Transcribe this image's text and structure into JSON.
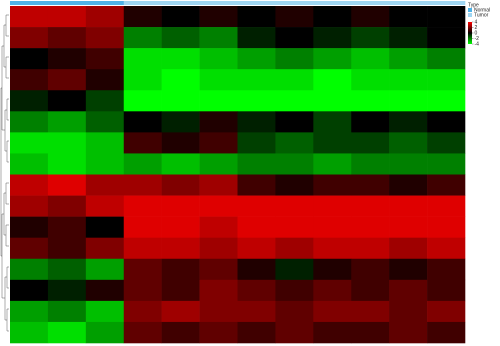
{
  "chart_data": {
    "type": "heatmap",
    "zlim": [
      -4,
      4
    ],
    "colorscale": {
      "low": "#00ff00",
      "mid": "#000000",
      "high": "#ff0000"
    },
    "colorbar_ticks": [
      4,
      2,
      0,
      -2,
      -4
    ],
    "type_legend": {
      "title": "Type",
      "items": [
        {
          "name": "Normal",
          "color": "#4fb3e8"
        },
        {
          "name": "Tumor",
          "color": "#9fd6f2"
        }
      ]
    },
    "column_type": [
      0,
      0,
      0,
      1,
      1,
      1,
      1,
      1,
      1,
      1,
      1,
      1
    ],
    "values": [
      [
        3,
        3,
        2.5,
        0.5,
        0,
        0.5,
        0,
        0.5,
        0,
        0.5,
        0,
        0
      ],
      [
        2,
        1.5,
        2,
        -2,
        -1.5,
        -2,
        -0.5,
        0,
        -0.5,
        -1,
        -0.5,
        0
      ],
      [
        0,
        0.5,
        1,
        -3.5,
        -3.5,
        -3,
        -2.5,
        -2,
        -2.5,
        -3,
        -2.5,
        -2
      ],
      [
        1,
        1.5,
        0.5,
        -3.5,
        -4,
        -3.5,
        -3.5,
        -3.5,
        -4,
        -3.5,
        -3.5,
        -3.5
      ],
      [
        -0.5,
        0,
        -1,
        -4,
        -4,
        -4,
        -4,
        -4,
        -4,
        -4,
        -4,
        -4
      ],
      [
        -2,
        -2.5,
        -1.5,
        0,
        -0.5,
        0.5,
        -0.5,
        0,
        -1,
        0,
        -0.5,
        0
      ],
      [
        -3.5,
        -3.5,
        -3,
        1,
        0.5,
        1,
        -1,
        -1.5,
        -1,
        -1,
        -1.5,
        -1
      ],
      [
        -3,
        -3.5,
        -3,
        -2.5,
        -3,
        -2.5,
        -2,
        -2,
        -2.5,
        -2,
        -2,
        -2
      ],
      [
        3,
        3.5,
        2.5,
        2.5,
        2,
        2.5,
        1,
        0.5,
        1,
        1,
        0.5,
        1
      ],
      [
        2.5,
        2,
        3,
        3.5,
        3.5,
        3.5,
        3.5,
        3.5,
        3.5,
        3.5,
        3.5,
        3.5
      ],
      [
        0.5,
        1,
        0,
        3.5,
        3.5,
        3,
        3.5,
        3.5,
        3.5,
        3.5,
        3.5,
        3.5
      ],
      [
        1.5,
        1,
        2,
        3,
        3,
        2.5,
        3,
        2.5,
        3,
        3,
        2.5,
        3
      ],
      [
        -2,
        -1.5,
        -2.5,
        1.5,
        1,
        1.5,
        0.5,
        -0.5,
        0.5,
        1,
        0.5,
        1
      ],
      [
        0,
        -0.5,
        0.5,
        1.5,
        1,
        2,
        1.5,
        1,
        1.5,
        1,
        1.5,
        1
      ],
      [
        -2.5,
        -2,
        -3,
        2,
        2.5,
        2,
        2,
        1.5,
        2,
        2,
        1.5,
        2
      ],
      [
        -3,
        -3.5,
        -2.5,
        1.5,
        1,
        1.5,
        1,
        1.5,
        1,
        1,
        1.5,
        1
      ]
    ]
  }
}
